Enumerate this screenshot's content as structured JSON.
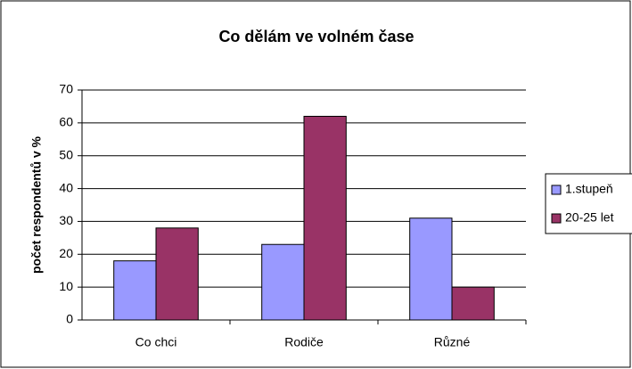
{
  "chart_data": {
    "type": "bar",
    "title": "Co dělám ve volném čase",
    "y_label": "počet respondentů v %",
    "categories": [
      "Co chci",
      "Rodiče",
      "Různé"
    ],
    "series": [
      {
        "name": "1.stupeň",
        "color": "#9999ff",
        "values": [
          18,
          23,
          31
        ]
      },
      {
        "name": "20-25 let",
        "color": "#993366",
        "values": [
          28,
          62,
          10
        ]
      }
    ],
    "ylim": [
      0,
      70
    ],
    "yticks": [
      0,
      10,
      20,
      30,
      40,
      50,
      60,
      70
    ],
    "grid": true,
    "legend": "right"
  }
}
